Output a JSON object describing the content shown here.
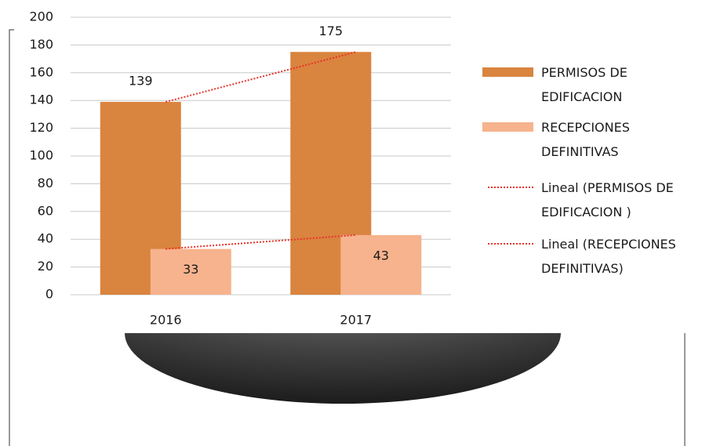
{
  "chart_data": {
    "type": "bar",
    "categories": [
      "2016",
      "2017"
    ],
    "series": [
      {
        "name": "PERMISOS DE EDIFICACION",
        "color": "#d9843f",
        "values": [
          139,
          175
        ]
      },
      {
        "name": "RECEPCIONES DEFINITIVAS",
        "color": "#f6b38d",
        "values": [
          33,
          43
        ]
      }
    ],
    "trendlines": [
      {
        "name": "Lineal (PERMISOS DE EDIFICACION )",
        "color": "#e8342a"
      },
      {
        "name": "Lineal (RECEPCIONES DEFINITIVAS)",
        "color": "#e8342a"
      }
    ],
    "ylim": [
      0,
      200
    ],
    "yticks": [
      0,
      20,
      40,
      60,
      80,
      100,
      120,
      140,
      160,
      180,
      200
    ],
    "grid": true,
    "legend": "right"
  }
}
